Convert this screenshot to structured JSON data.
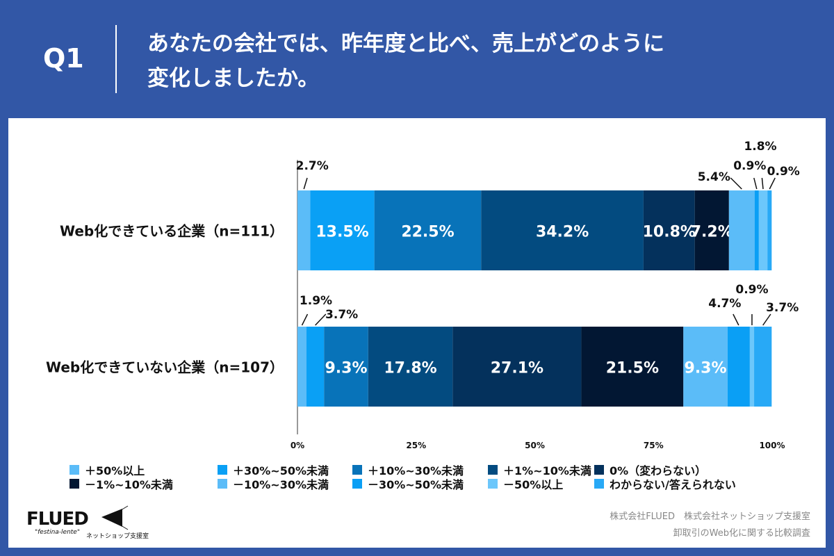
{
  "header": {
    "q": "Q1",
    "title_line1": "あなたの会社では、昨年度と比べ、売上がどのように",
    "title_line2": "変化しましたか。"
  },
  "chart_data": {
    "type": "bar",
    "orientation": "horizontal",
    "stacked": true,
    "categories": [
      "Web化できている企業（n=111）",
      "Web化できていない企業（n=107）"
    ],
    "xlim": [
      0,
      100
    ],
    "xticks": [
      "0%",
      "25%",
      "50%",
      "75%",
      "100%"
    ],
    "legend_position": "bottom",
    "series": [
      {
        "name": "＋50%以上",
        "color": "#5bbcf8",
        "values": [
          2.7,
          1.9
        ]
      },
      {
        "name": "＋30%~50%未満",
        "color": "#0aa0f5",
        "values": [
          13.5,
          3.7
        ]
      },
      {
        "name": "＋10%~30%未満",
        "color": "#0873b9",
        "values": [
          22.5,
          9.3
        ]
      },
      {
        "name": "＋1%~10%未満",
        "color": "#034b80",
        "values": [
          34.2,
          17.8
        ]
      },
      {
        "name": "0%（変わらない）",
        "color": "#04315c",
        "values": [
          10.8,
          27.1
        ]
      },
      {
        "name": "－1%~10%未満",
        "color": "#021733",
        "values": [
          7.2,
          21.5
        ]
      },
      {
        "name": "－10%~30%未満",
        "color": "#5bbcf8",
        "values": [
          5.4,
          9.3
        ]
      },
      {
        "name": "－30%~50%未満",
        "color": "#0a9ff5",
        "values": [
          0.9,
          4.7
        ]
      },
      {
        "name": "－50%以上",
        "color": "#6cc7fb",
        "values": [
          1.8,
          0.9
        ]
      },
      {
        "name": "わからない/答えられない",
        "color": "#28a9f6",
        "values": [
          0.9,
          3.7
        ]
      }
    ]
  },
  "footer": {
    "logo": "FLUED",
    "logo_sub": "\"festina-lente\"",
    "logo2": "ネットショップ支援室",
    "credit1": "株式会社FLUED　株式会社ネットショップ支援室",
    "credit2": "卸取引のWeb化に関する比較調査"
  }
}
